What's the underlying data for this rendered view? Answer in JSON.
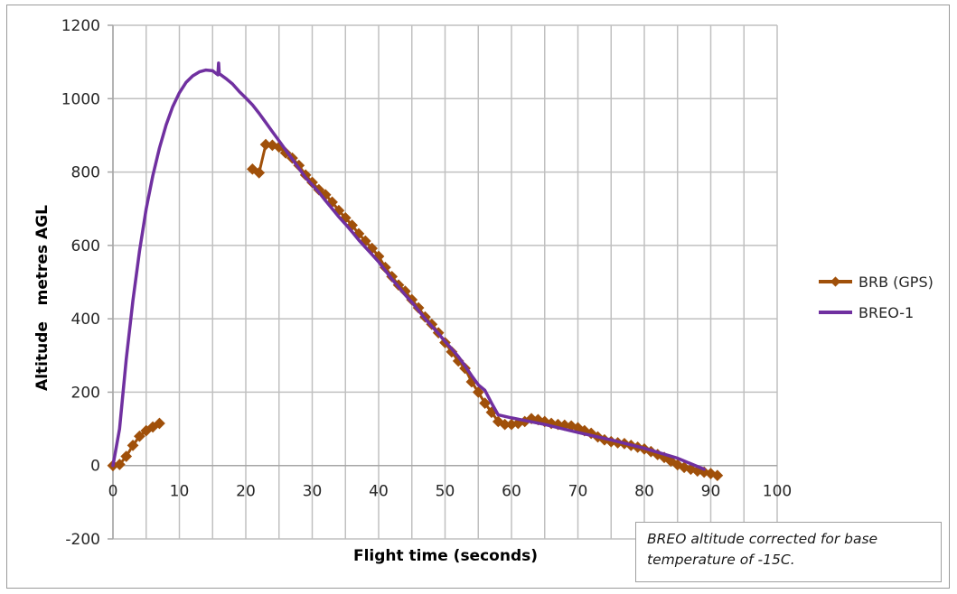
{
  "chart_data": {
    "type": "line",
    "title": "",
    "xlabel": "Flight time (seconds)",
    "ylabel": "Altitude   metres AGL",
    "xlim": [
      0,
      100
    ],
    "ylim": [
      -200,
      1200
    ],
    "x_ticks": [
      0,
      10,
      20,
      30,
      40,
      50,
      60,
      70,
      80,
      90,
      100
    ],
    "y_ticks": [
      -200,
      0,
      200,
      400,
      600,
      800,
      1000,
      1200
    ],
    "x_minor_gridlines_every": 5,
    "grid": true,
    "legend_position": "right",
    "annotation": "BREO altitude corrected for base temperature of -15C.",
    "series": [
      {
        "name": "BRB (GPS)",
        "color": "#A0500A",
        "marker": "diamond",
        "segments": [
          [
            [
              0,
              0
            ],
            [
              1,
              3
            ],
            [
              2,
              25
            ],
            [
              3,
              55
            ],
            [
              4,
              80
            ],
            [
              5,
              95
            ],
            [
              6,
              105
            ],
            [
              7,
              115
            ]
          ],
          [
            [
              21,
              808
            ],
            [
              22,
              798
            ],
            [
              23,
              875
            ],
            [
              24,
              873
            ],
            [
              25,
              868
            ],
            [
              26,
              852
            ],
            [
              27,
              838
            ],
            [
              28,
              818
            ],
            [
              29,
              792
            ],
            [
              30,
              772
            ],
            [
              31,
              752
            ],
            [
              32,
              738
            ],
            [
              33,
              718
            ],
            [
              34,
              695
            ],
            [
              35,
              675
            ],
            [
              36,
              655
            ],
            [
              37,
              632
            ],
            [
              38,
              612
            ],
            [
              39,
              592
            ],
            [
              40,
              570
            ],
            [
              41,
              540
            ],
            [
              42,
              515
            ],
            [
              43,
              492
            ],
            [
              44,
              475
            ],
            [
              45,
              452
            ],
            [
              46,
              430
            ],
            [
              47,
              405
            ],
            [
              48,
              385
            ],
            [
              49,
              362
            ],
            [
              50,
              335
            ],
            [
              51,
              310
            ],
            [
              52,
              285
            ],
            [
              53,
              265
            ],
            [
              54,
              228
            ],
            [
              55,
              200
            ],
            [
              56,
              170
            ],
            [
              57,
              145
            ],
            [
              58,
              120
            ],
            [
              59,
              112
            ],
            [
              60,
              112
            ],
            [
              61,
              115
            ],
            [
              62,
              120
            ],
            [
              63,
              128
            ],
            [
              64,
              125
            ],
            [
              65,
              120
            ],
            [
              66,
              115
            ],
            [
              67,
              112
            ],
            [
              68,
              110
            ],
            [
              69,
              108
            ],
            [
              70,
              103
            ],
            [
              71,
              95
            ],
            [
              72,
              88
            ],
            [
              73,
              78
            ],
            [
              74,
              70
            ],
            [
              75,
              65
            ],
            [
              76,
              62
            ],
            [
              77,
              60
            ],
            [
              78,
              55
            ],
            [
              79,
              50
            ],
            [
              80,
              45
            ],
            [
              81,
              38
            ],
            [
              82,
              30
            ],
            [
              83,
              22
            ],
            [
              84,
              12
            ],
            [
              85,
              2
            ],
            [
              86,
              -5
            ],
            [
              87,
              -10
            ],
            [
              88,
              -15
            ],
            [
              89,
              -18
            ],
            [
              90,
              -22
            ],
            [
              91,
              -27
            ]
          ]
        ]
      },
      {
        "name": "BREO-1",
        "color": "#7030A0",
        "marker": "none",
        "segments": [
          [
            [
              0,
              0
            ],
            [
              1,
              100
            ],
            [
              2,
              290
            ],
            [
              3,
              450
            ],
            [
              4,
              585
            ],
            [
              5,
              700
            ],
            [
              6,
              790
            ],
            [
              7,
              865
            ],
            [
              8,
              928
            ],
            [
              9,
              978
            ],
            [
              10,
              1016
            ],
            [
              11,
              1044
            ],
            [
              12,
              1062
            ],
            [
              13,
              1073
            ],
            [
              14,
              1078
            ],
            [
              15,
              1076
            ],
            [
              15.8,
              1065
            ],
            [
              15.9,
              1097
            ],
            [
              16,
              1068
            ],
            [
              17,
              1055
            ],
            [
              18,
              1040
            ],
            [
              19,
              1020
            ],
            [
              20,
              1002
            ],
            [
              21,
              983
            ],
            [
              22,
              960
            ],
            [
              23,
              935
            ],
            [
              24,
              910
            ],
            [
              25,
              885
            ],
            [
              26,
              860
            ],
            [
              27,
              835
            ],
            [
              28,
              810
            ],
            [
              29,
              785
            ],
            [
              30,
              765
            ],
            [
              31,
              745
            ],
            [
              32,
              722
            ],
            [
              33,
              700
            ],
            [
              34,
              678
            ],
            [
              35,
              658
            ],
            [
              36,
              637
            ],
            [
              37,
              615
            ],
            [
              38,
              595
            ],
            [
              39,
              575
            ],
            [
              40,
              555
            ],
            [
              41,
              532
            ],
            [
              42,
              508
            ],
            [
              43,
              487
            ],
            [
              44,
              465
            ],
            [
              45,
              445
            ],
            [
              46,
              423
            ],
            [
              47,
              400
            ],
            [
              48,
              380
            ],
            [
              49,
              360
            ],
            [
              50,
              338
            ],
            [
              51,
              318
            ],
            [
              52,
              297
            ],
            [
              53,
              272
            ],
            [
              54,
              245
            ],
            [
              55,
              220
            ],
            [
              56,
              205
            ],
            [
              57,
              170
            ],
            [
              58,
              138
            ],
            [
              60,
              130
            ],
            [
              65,
              112
            ],
            [
              70,
              90
            ],
            [
              75,
              70
            ],
            [
              80,
              47
            ],
            [
              85,
              20
            ],
            [
              89,
              -10
            ]
          ]
        ]
      }
    ]
  },
  "legend": {
    "items": [
      {
        "label": "BRB (GPS)",
        "color": "#A0500A"
      },
      {
        "label": "BREO-1",
        "color": "#7030A0"
      }
    ]
  },
  "axes": {
    "x_title": "Flight time (seconds)",
    "y_title": "Altitude   metres AGL",
    "x_tick_labels": [
      "0",
      "10",
      "20",
      "30",
      "40",
      "50",
      "60",
      "70",
      "80",
      "90",
      "100"
    ],
    "y_tick_labels": [
      "1200",
      "1000",
      "800",
      "600",
      "400",
      "200",
      "0",
      "-200"
    ]
  },
  "note": {
    "text": "BREO altitude corrected for base temperature of -15C."
  },
  "colors": {
    "grid": "#c0c0c0",
    "axis": "#a6a6a6",
    "brb": "#A0500A",
    "breo": "#7030A0"
  }
}
